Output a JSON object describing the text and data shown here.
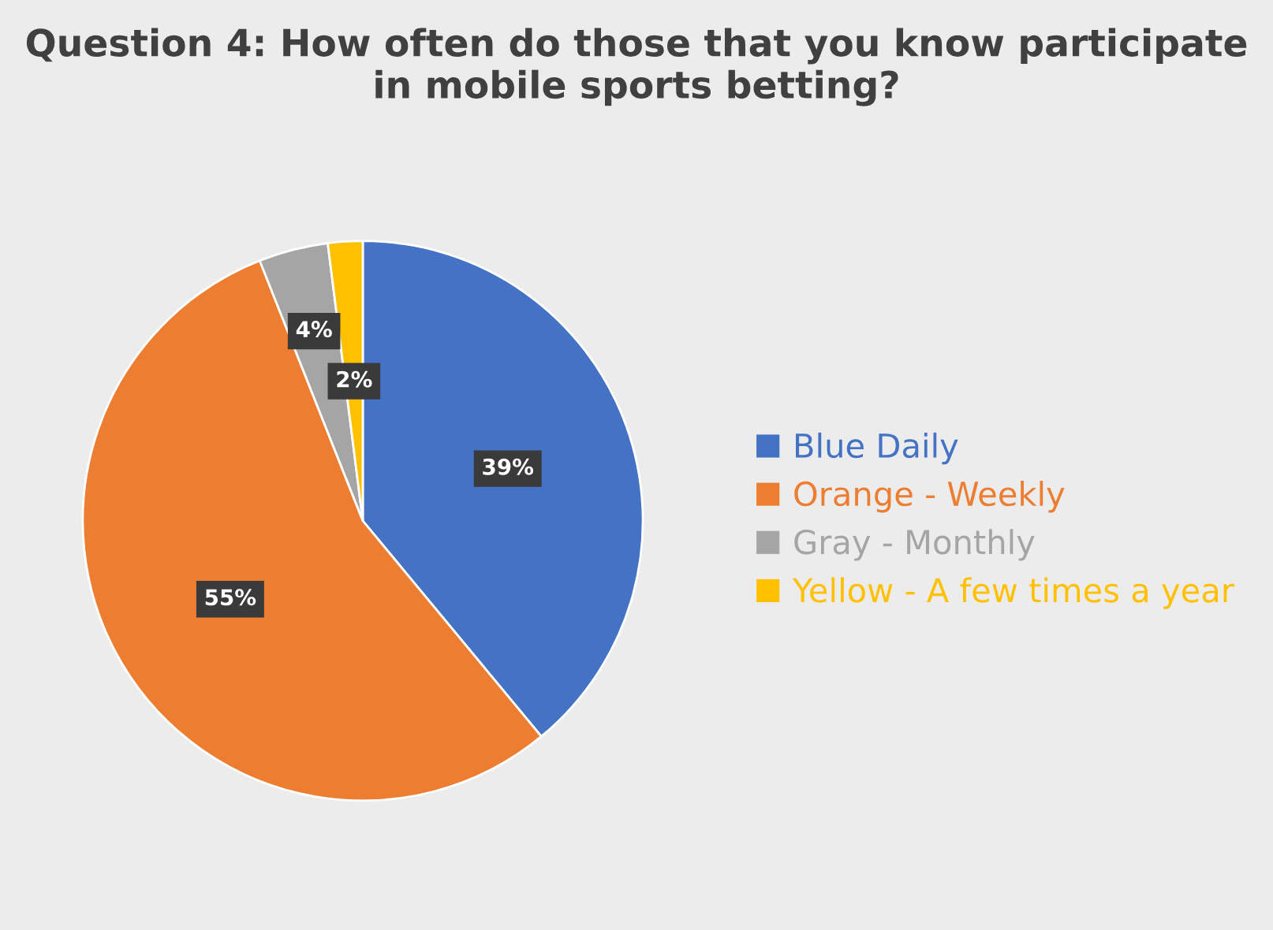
{
  "chart_data": {
    "type": "pie",
    "title": "Question 4: How often do those that you know participate in mobile sports betting?",
    "categories": [
      "Blue Daily",
      "Orange - Weekly",
      "Gray - Monthly",
      "Yellow - A few times a year"
    ],
    "values": [
      39,
      55,
      4,
      2
    ],
    "colors": [
      "#4472c4",
      "#ed7d31",
      "#a5a5a5",
      "#ffc000"
    ],
    "value_labels": [
      "39%",
      "55%",
      "4%",
      "2%"
    ],
    "legend": "right"
  }
}
